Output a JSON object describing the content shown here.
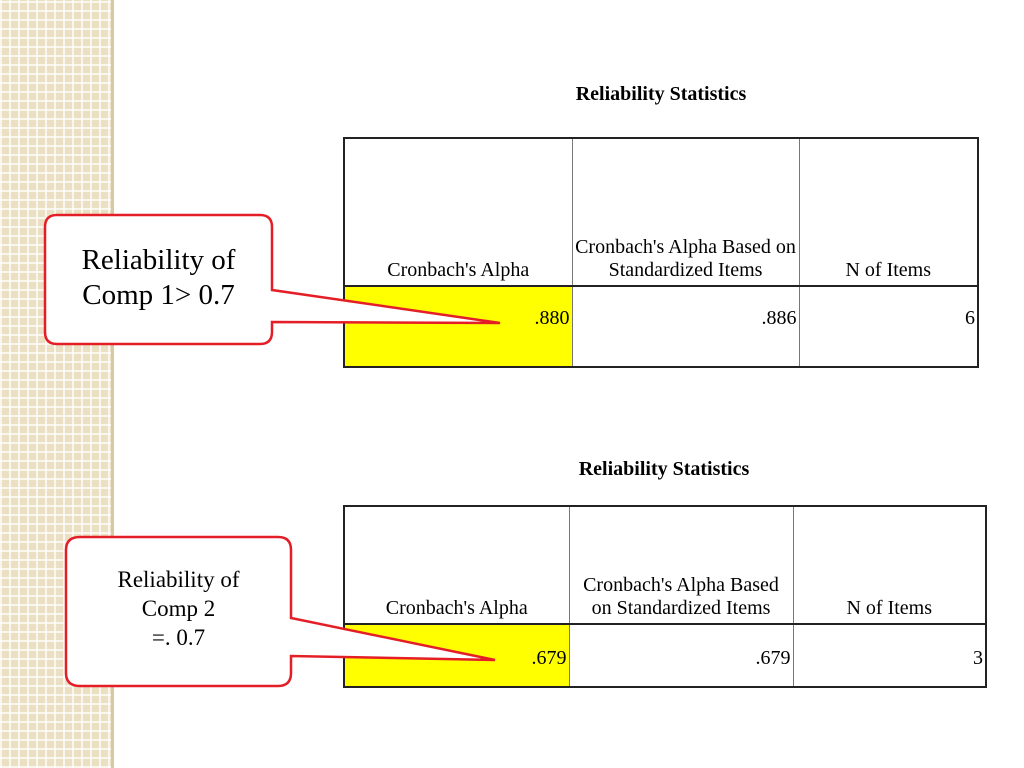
{
  "tables": [
    {
      "title": "Reliability Statistics",
      "headers": [
        "Cronbach's Alpha",
        "Cronbach's Alpha Based on Standardized Items",
        "N of Items"
      ],
      "values": [
        ".880",
        ".886",
        "6"
      ]
    },
    {
      "title": "Reliability Statistics",
      "headers": [
        "Cronbach's Alpha",
        "Cronbach's Alpha Based on Standardized Items",
        "N of Items"
      ],
      "values": [
        ".679",
        ".679",
        "3"
      ]
    }
  ],
  "callouts": [
    {
      "lines": [
        "Reliability of",
        "Comp 1> 0.7"
      ]
    },
    {
      "lines": [
        "Reliability of",
        "Comp 2",
        "=. 0.7"
      ]
    }
  ]
}
